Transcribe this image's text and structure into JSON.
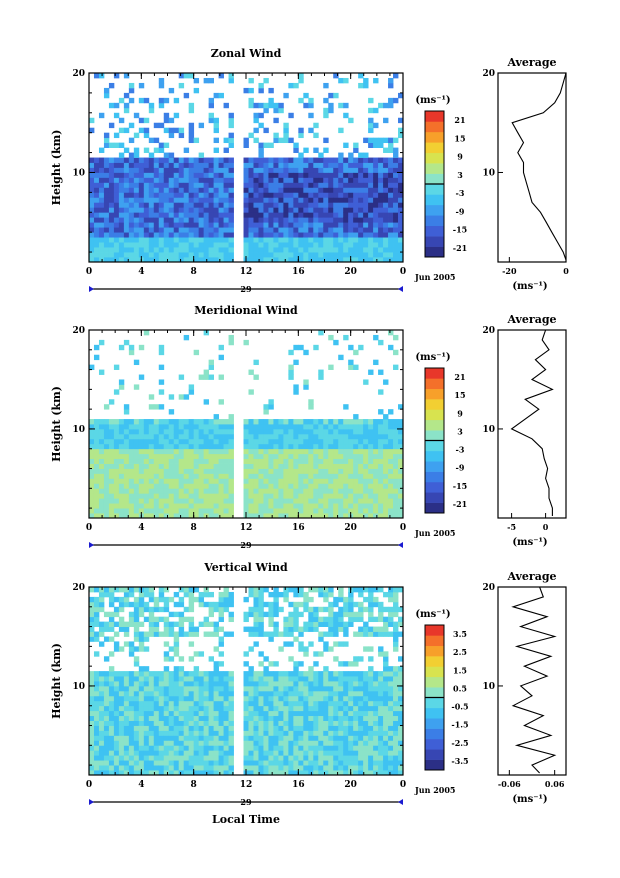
{
  "figure": {
    "x_axis_title": "Local Time",
    "date_label": "29",
    "month_label": "Jun 2005"
  },
  "chart_data": [
    {
      "type": "heatmap",
      "id": "zonal",
      "title": "Zonal Wind",
      "ylabel": "Height (km)",
      "ylim": [
        1,
        20
      ],
      "yticks": [
        10,
        20
      ],
      "x_ticks": [
        "0",
        "4",
        "8",
        "12",
        "16",
        "20",
        "0"
      ],
      "colorbar": {
        "unit": "(ms⁻¹)",
        "ticks": [
          "21",
          "15",
          "9",
          "3",
          "-3",
          "-9",
          "-15",
          "-21"
        ],
        "range": [
          -24,
          24
        ]
      },
      "average": {
        "title": "Average",
        "xlabel": "(ms⁻¹)",
        "xlim": [
          -24,
          0
        ],
        "x_ticks": [
          "-20",
          "0"
        ],
        "y_ticks": [
          10,
          20
        ],
        "profile": [
          [
            0,
            1.2
          ],
          [
            -1,
            2
          ],
          [
            -3,
            3
          ],
          [
            -5,
            4
          ],
          [
            -7,
            5
          ],
          [
            -9,
            6
          ],
          [
            -12,
            7
          ],
          [
            -13,
            8
          ],
          [
            -14,
            9
          ],
          [
            -15,
            10
          ],
          [
            -15,
            11
          ],
          [
            -17,
            12
          ],
          [
            -15,
            13
          ],
          [
            -17,
            14
          ],
          [
            -19,
            15
          ],
          [
            -8,
            16
          ],
          [
            -4,
            17
          ],
          [
            -2,
            18
          ],
          [
            -1,
            19
          ],
          [
            0,
            20
          ]
        ]
      }
    },
    {
      "type": "heatmap",
      "id": "meridional",
      "title": "Meridional Wind",
      "ylabel": "Height (km)",
      "ylim": [
        1,
        20
      ],
      "yticks": [
        10,
        20
      ],
      "x_ticks": [
        "0",
        "4",
        "8",
        "12",
        "16",
        "20",
        "0"
      ],
      "colorbar": {
        "unit": "(ms⁻¹)",
        "ticks": [
          "21",
          "15",
          "9",
          "3",
          "-3",
          "-9",
          "-15",
          "-21"
        ],
        "range": [
          -24,
          24
        ]
      },
      "average": {
        "title": "Average",
        "xlabel": "(ms⁻¹)",
        "xlim": [
          -7,
          3
        ],
        "x_ticks": [
          "-5",
          "0"
        ],
        "y_ticks": [
          10,
          20
        ],
        "profile": [
          [
            1,
            1.2
          ],
          [
            1,
            2
          ],
          [
            0.5,
            3
          ],
          [
            0.5,
            4
          ],
          [
            0,
            5
          ],
          [
            0.3,
            6
          ],
          [
            -0.2,
            7
          ],
          [
            -0.5,
            8
          ],
          [
            -2,
            9
          ],
          [
            -5,
            10
          ],
          [
            -3,
            11
          ],
          [
            -1,
            12
          ],
          [
            -3,
            13
          ],
          [
            1,
            14
          ],
          [
            -2,
            15
          ],
          [
            0,
            16
          ],
          [
            -1.5,
            17
          ],
          [
            0.5,
            18
          ],
          [
            -0.5,
            19
          ],
          [
            0,
            20
          ]
        ]
      }
    },
    {
      "type": "heatmap",
      "id": "vertical",
      "title": "Vertical Wind",
      "ylabel": "Height (km)",
      "ylim": [
        1,
        20
      ],
      "yticks": [
        10,
        20
      ],
      "x_ticks": [
        "0",
        "4",
        "8",
        "12",
        "16",
        "20",
        "0"
      ],
      "colorbar": {
        "unit": "(ms⁻¹)",
        "ticks": [
          "3.5",
          "2.5",
          "1.5",
          "0.5",
          "-0.5",
          "-1.5",
          "-2.5",
          "-3.5"
        ],
        "range": [
          -4,
          4
        ]
      },
      "average": {
        "title": "Average",
        "xlabel": "(ms⁻¹)",
        "xlim": [
          -0.09,
          0.09
        ],
        "x_ticks": [
          "-0.06",
          "0.06"
        ],
        "y_ticks": [
          10,
          20
        ],
        "profile": [
          [
            0.02,
            1.2
          ],
          [
            0.0,
            2
          ],
          [
            0.06,
            3
          ],
          [
            -0.04,
            4
          ],
          [
            0.05,
            5
          ],
          [
            -0.02,
            6
          ],
          [
            0.03,
            7
          ],
          [
            -0.05,
            8
          ],
          [
            0.0,
            9
          ],
          [
            -0.03,
            10
          ],
          [
            0.04,
            11
          ],
          [
            -0.02,
            12
          ],
          [
            0.05,
            13
          ],
          [
            -0.04,
            14
          ],
          [
            0.06,
            15
          ],
          [
            -0.03,
            16
          ],
          [
            0.04,
            17
          ],
          [
            -0.05,
            18
          ],
          [
            0.03,
            19
          ],
          [
            0.02,
            20
          ]
        ]
      }
    }
  ]
}
